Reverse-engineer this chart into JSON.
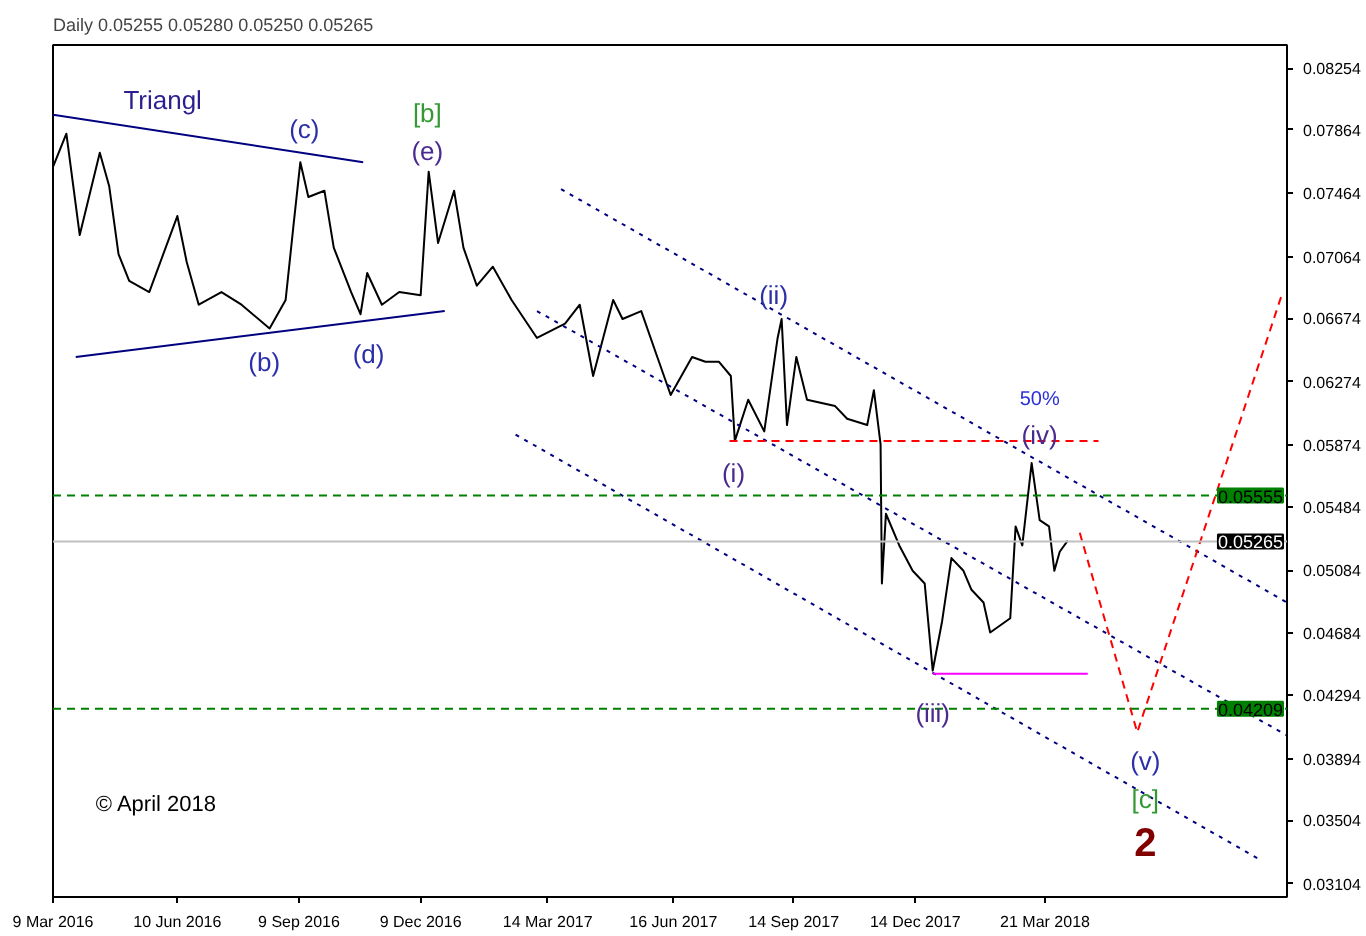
{
  "chart_data": {
    "type": "line",
    "title": "Daily 0.05255 0.05280 0.05250 0.05265",
    "xlim": [
      "2016-03-09",
      "2018-09-18"
    ],
    "ylim": [
      0.0302,
      0.084
    ],
    "xticks": [
      {
        "value": "2016-03-09",
        "label": "9 Mar 2016"
      },
      {
        "value": "2016-06-10",
        "label": "10 Jun 2016"
      },
      {
        "value": "2016-09-09",
        "label": "9 Sep 2016"
      },
      {
        "value": "2016-12-09",
        "label": "9 Dec 2016"
      },
      {
        "value": "2017-03-14",
        "label": "14 Mar 2017"
      },
      {
        "value": "2017-06-16",
        "label": "16 Jun 2017"
      },
      {
        "value": "2017-09-14",
        "label": "14 Sep 2017"
      },
      {
        "value": "2017-12-14",
        "label": "14 Dec 2017"
      },
      {
        "value": "2018-03-21",
        "label": "21 Mar 2018"
      }
    ],
    "yticks": [
      0.08254,
      0.07864,
      0.07464,
      0.07064,
      0.06674,
      0.06274,
      0.05874,
      0.05484,
      0.05084,
      0.04684,
      0.04294,
      0.03894,
      0.03504,
      0.03104
    ],
    "series": [
      {
        "color": "#000000",
        "line_style": "solid",
        "x": [
          "2016-03-09",
          "2016-03-19",
          "2016-03-29",
          "2016-04-13",
          "2016-04-20",
          "2016-04-27",
          "2016-05-05",
          "2016-05-20",
          "2016-06-10",
          "2016-06-17",
          "2016-06-26",
          "2016-07-13",
          "2016-07-28",
          "2016-08-18",
          "2016-08-30",
          "2016-09-05",
          "2016-09-10",
          "2016-09-16",
          "2016-09-28",
          "2016-10-05",
          "2016-10-18",
          "2016-10-25",
          "2016-10-30",
          "2016-11-10",
          "2016-11-23",
          "2016-12-09",
          "2016-12-15",
          "2016-12-22",
          "2017-01-03",
          "2017-01-10",
          "2017-01-20",
          "2017-02-01",
          "2017-02-15",
          "2017-03-06",
          "2017-03-27",
          "2017-04-07",
          "2017-04-17",
          "2017-05-02",
          "2017-05-09",
          "2017-05-23",
          "2017-06-04",
          "2017-06-14",
          "2017-06-30",
          "2017-07-10",
          "2017-07-20",
          "2017-07-29",
          "2017-08-01",
          "2017-08-11",
          "2017-08-23",
          "2017-09-02",
          "2017-09-05",
          "2017-09-09",
          "2017-09-16",
          "2017-09-24",
          "2017-10-15",
          "2017-10-24",
          "2017-11-08",
          "2017-11-13",
          "2017-11-18",
          "2017-11-19",
          "2017-11-22",
          "2017-12-02",
          "2017-12-12",
          "2017-12-21",
          "2017-12-27",
          "2018-01-03",
          "2018-01-10",
          "2018-01-19",
          "2018-01-25",
          "2018-02-03",
          "2018-02-08",
          "2018-02-23",
          "2018-02-27",
          "2018-03-04",
          "2018-03-11",
          "2018-03-17",
          "2018-03-24",
          "2018-03-28",
          "2018-04-01",
          "2018-04-07"
        ],
        "values": [
          0.0763,
          0.0784,
          0.072,
          0.0772,
          0.0751,
          0.0708,
          0.0691,
          0.0684,
          0.0732,
          0.0703,
          0.0676,
          0.0684,
          0.0676,
          0.0661,
          0.0679,
          0.0727,
          0.0766,
          0.0744,
          0.0748,
          0.0712,
          0.0684,
          0.067,
          0.0696,
          0.0676,
          0.0684,
          0.0682,
          0.076,
          0.0715,
          0.0748,
          0.0712,
          0.0688,
          0.07,
          0.0679,
          0.0655,
          0.0664,
          0.0676,
          0.0631,
          0.0679,
          0.0667,
          0.0672,
          0.0643,
          0.0619,
          0.0643,
          0.064,
          0.064,
          0.0631,
          0.059,
          0.0616,
          0.0596,
          0.0655,
          0.0667,
          0.06,
          0.0643,
          0.0616,
          0.0612,
          0.0604,
          0.06,
          0.0622,
          0.0588,
          0.05,
          0.0544,
          0.0524,
          0.0508,
          0.05,
          0.0445,
          0.0476,
          0.0516,
          0.0508,
          0.0496,
          0.0488,
          0.0469,
          0.0478,
          0.0536,
          0.0524,
          0.0576,
          0.054,
          0.0536,
          0.0508,
          0.052,
          0.0527
        ]
      },
      {
        "color": "#000080",
        "line_style": "solid",
        "x": [
          "2016-03-09",
          "2016-10-27"
        ],
        "values": [
          0.0796,
          0.0766
        ]
      },
      {
        "color": "#000080",
        "line_style": "solid",
        "x": [
          "2016-03-26",
          "2016-12-27"
        ],
        "values": [
          0.0643,
          0.0672
        ]
      },
      {
        "color": "#000080",
        "line_style": "dotted",
        "x": [
          "2017-03-24",
          "2018-09-18"
        ],
        "values": [
          0.0749,
          0.0488
        ]
      },
      {
        "color": "#000080",
        "line_style": "dotted",
        "x": [
          "2017-03-06",
          "2018-09-18"
        ],
        "values": [
          0.0672,
          0.0404
        ]
      },
      {
        "color": "#000080",
        "line_style": "dotted",
        "x": [
          "2017-02-18",
          "2018-08-30"
        ],
        "values": [
          0.0594,
          0.0325
        ]
      },
      {
        "color": "#ff0000",
        "line_style": "dashed",
        "x": [
          "2018-04-16",
          "2018-05-29",
          "2018-09-14"
        ],
        "values": [
          0.0532,
          0.0406,
          0.0682
        ]
      },
      {
        "color": "#ff0000",
        "line_style": "dashed",
        "x": [
          "2017-07-28",
          "2018-04-30"
        ],
        "values": [
          0.059,
          0.059
        ]
      },
      {
        "color": "#ff00ff",
        "line_style": "solid",
        "x": [
          "2017-12-27",
          "2018-04-22"
        ],
        "values": [
          0.0443,
          0.0443
        ]
      }
    ],
    "ref_lines": [
      {
        "axis": "y",
        "value": 0.05555,
        "label": "0.05555",
        "color": "#008000",
        "line_style": "dashed"
      },
      {
        "axis": "y",
        "value": 0.04209,
        "label": "0.04209",
        "color": "#008000",
        "line_style": "dashed"
      },
      {
        "axis": "y",
        "value": 0.05265,
        "label": "0.05265",
        "color": "#c0c0c0",
        "line_style": "solid"
      }
    ],
    "annotations": [
      "Triangl",
      "(c)",
      "[b]",
      "(e)",
      "(b)",
      "(d)",
      "(ii)",
      "(i)",
      "50%",
      "(iv)",
      "(iii)",
      "(v)",
      "[c]",
      "2",
      "© April 2018"
    ]
  }
}
